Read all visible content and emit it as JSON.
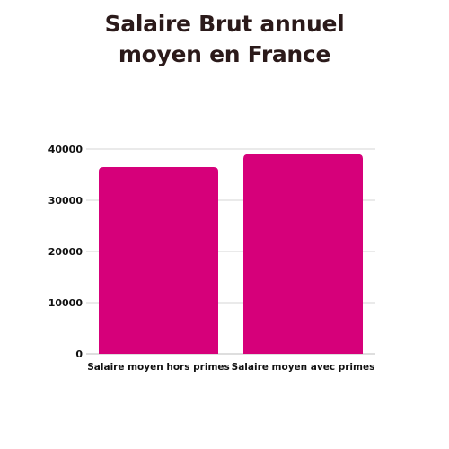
{
  "chart_data": {
    "type": "bar",
    "title": "Salaire Brut annuel\nmoyen en France",
    "xlabel": "",
    "ylabel": "",
    "categories": [
      "Salaire moyen hors primes",
      "Salaire moyen avec primes"
    ],
    "values": [
      36500,
      39000
    ],
    "ylim": [
      0,
      40000
    ],
    "yticks": [
      0,
      10000,
      20000,
      30000,
      40000
    ],
    "grid": true,
    "bar_color": "#d6007a"
  }
}
